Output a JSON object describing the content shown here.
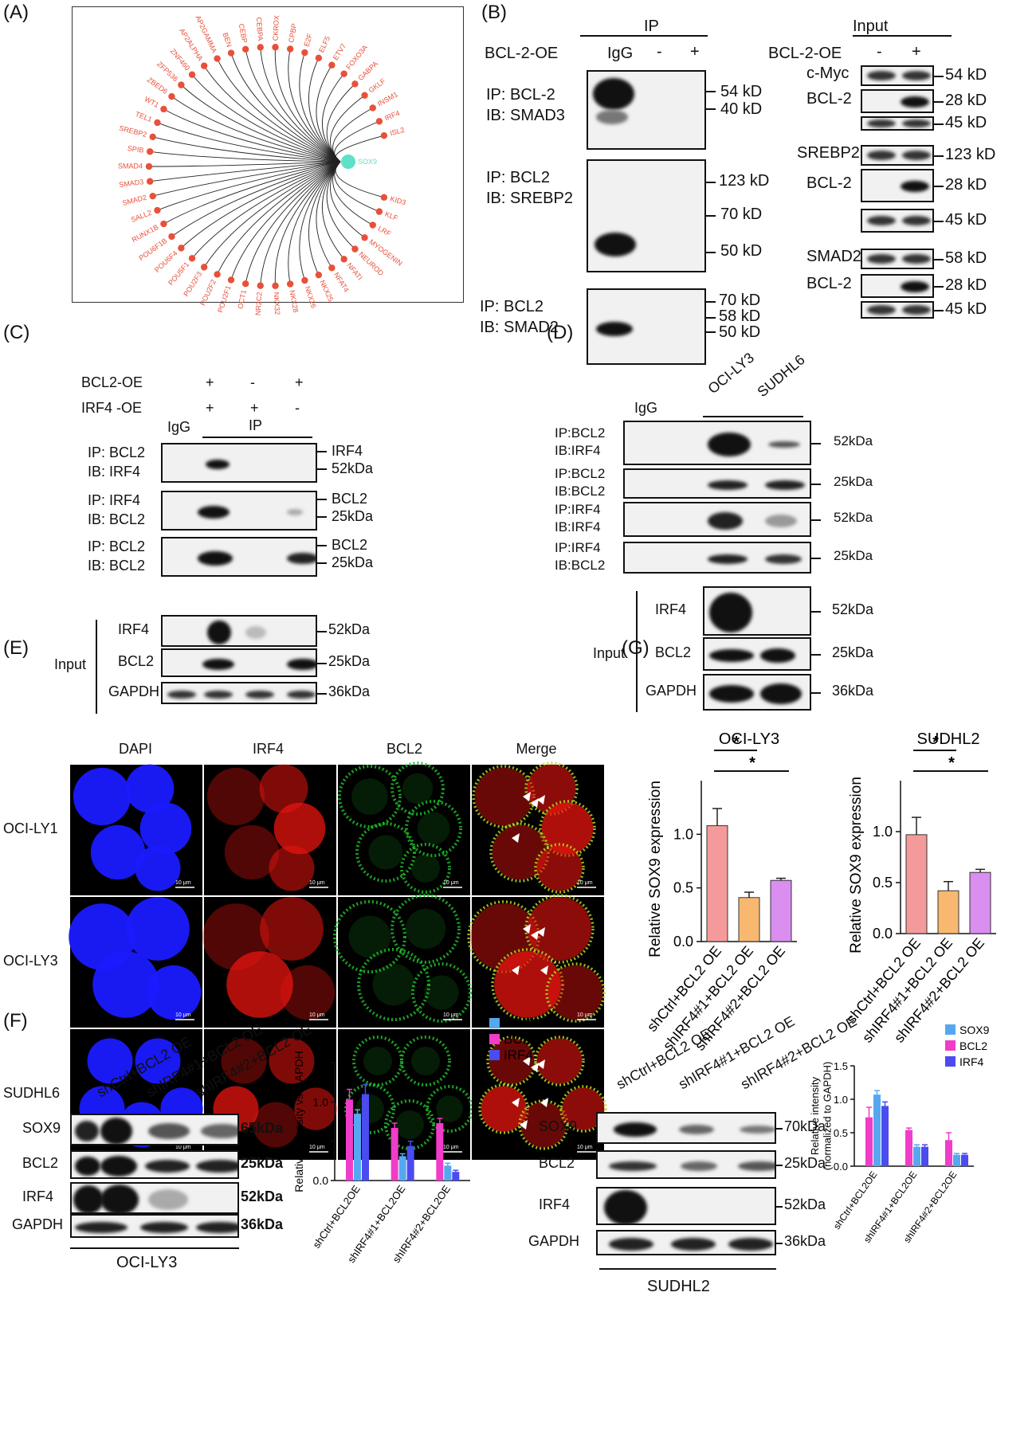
{
  "panel_letters": [
    "(A)",
    "(B)",
    "(C)",
    "(D)",
    "(E)",
    "(F)",
    "(G)"
  ],
  "panelA": {
    "center": "SOX9",
    "colors": {
      "node": "#e8503a",
      "center": "#5fe0c8",
      "line": "#222222"
    },
    "nodes": [
      "ISL2",
      "IRF4",
      "INSM1",
      "GKLF",
      "GABPA",
      "FOXO3A",
      "ETV7",
      "ELF5",
      "E2F",
      "CPBP",
      "CKROX",
      "CEBPA",
      "CEBP",
      "BEN",
      "AP2GAMMA",
      "AP2ALPHA",
      "ZNF460",
      "ZFP536",
      "ZBED6",
      "WT1",
      "TEL1",
      "SREBP2",
      "SPIB",
      "SMAD4",
      "SMAD3",
      "SMAD2",
      "SALL2",
      "RUNX1B",
      "POU6F1B",
      "POU6F4",
      "POU5F1",
      "POU2F3",
      "POU2F2",
      "POU2F1",
      "OCT1",
      "NR2C2",
      "NKX32",
      "NKX28",
      "NKX26",
      "NKX25",
      "NFAT4",
      "NFATI",
      "NEUROD",
      "MYOGENIN",
      "LRF",
      "KLF",
      "KID3"
    ]
  },
  "panelB": {
    "ip_header": "IP",
    "input_header": "Input",
    "row_label": "BCL-2-OE",
    "input_row_label": "BCL-2-OE",
    "lanes": [
      "IgG",
      "-",
      "+"
    ],
    "input_lanes": [
      "-",
      "+"
    ],
    "blot1": {
      "ip": "IP: BCL-2",
      "ib": "IB: SMAD3",
      "markers": [
        "54 kD",
        "40 kD"
      ]
    },
    "blot2": {
      "ip": "IP: BCL2",
      "ib": "IB: SREBP2",
      "markers": [
        "123 kD",
        "70 kD",
        "50 kD"
      ]
    },
    "blot3": {
      "ip": "IP: BCL2",
      "ib": "IB: SMAD2",
      "markers": [
        "70 kD",
        "58 kD",
        "50 kD"
      ]
    },
    "input_blots": [
      {
        "label": "c-Myc",
        "marker": "54 kD"
      },
      {
        "label": "BCL-2",
        "marker": "28 kD"
      },
      {
        "label": "",
        "marker": "45 kD"
      },
      {
        "label": "SREBP2",
        "marker": "123 kD"
      },
      {
        "label": "BCL-2",
        "marker": "28 kD"
      },
      {
        "label": "",
        "marker": "45 kD"
      },
      {
        "label": "SMAD2",
        "marker": "58 kD"
      },
      {
        "label": "BCL-2",
        "marker": "28 kD"
      },
      {
        "label": "",
        "marker": "45 kD"
      }
    ]
  },
  "panelC": {
    "row1": {
      "label": "BCL2-OE",
      "values": [
        "+",
        "-",
        "+"
      ]
    },
    "row2": {
      "label": "IRF4 -OE",
      "values": [
        "+",
        "+",
        "-"
      ]
    },
    "igg": "IgG",
    "ip": "IP",
    "blots": [
      {
        "ip": "IP: BCL2",
        "ib": "IB: IRF4",
        "m1": "IRF4",
        "m2": "52kDa"
      },
      {
        "ip": "IP: IRF4",
        "ib": "IB: BCL2",
        "m1": "BCL2",
        "m2": "25kDa"
      },
      {
        "ip": "IP: BCL2",
        "ib": "IB: BCL2",
        "m1": "BCL2",
        "m2": "25kDa"
      }
    ],
    "input_label": "Input",
    "input_blots": [
      {
        "label": "IRF4",
        "marker": "52kDa"
      },
      {
        "label": "BCL2",
        "marker": "25kDa"
      },
      {
        "label": "GAPDH",
        "marker": "36kDa"
      }
    ]
  },
  "panelD": {
    "igg": "IgG",
    "lanes": [
      "OCI-LY3",
      "SUDHL6"
    ],
    "blots": [
      {
        "ip": "IP:BCL2",
        "ib": "IB:IRF4",
        "marker": "52kDa"
      },
      {
        "ip": "IP:BCL2",
        "ib": "IB:BCL2",
        "marker": "25kDa"
      },
      {
        "ip": "IP:IRF4",
        "ib": "IB:IRF4",
        "marker": "52kDa"
      },
      {
        "ip": "IP:IRF4",
        "ib": "IB:BCL2",
        "marker": "25kDa"
      }
    ],
    "input_label": "Input",
    "input_blots": [
      {
        "label": "IRF4",
        "marker": "52kDa"
      },
      {
        "label": "BCL2",
        "marker": "25kDa"
      },
      {
        "label": "GAPDH",
        "marker": "36kDa"
      }
    ]
  },
  "panelE": {
    "columns": [
      "DAPI",
      "IRF4",
      "BCL2",
      "Merge"
    ],
    "rows": [
      "OCI-LY1",
      "OCI-LY3",
      "SUDHL6"
    ],
    "scale": "10 μm",
    "colors": {
      "dapi": "#1a1aff",
      "irf4": "#e8140f",
      "bcl2": "#1fbf2a"
    }
  },
  "panelF": {
    "left": {
      "lanes": [
        "shCtrl+BCL2 OE",
        "shIRF4#1+BCL2 OE",
        "shIRF4#2+BCL2 OE"
      ],
      "blots": [
        {
          "label": "SOX9",
          "marker": "65kDa"
        },
        {
          "label": "BCL2",
          "marker": "25kDa"
        },
        {
          "label": "IRF4",
          "marker": "52kDa"
        },
        {
          "label": "GAPDH",
          "marker": "36kDa"
        }
      ],
      "cell": "OCI-LY3"
    },
    "right": {
      "lanes": [
        "shCtrl+BCL2 OE",
        "shIRF4#1+BCL2 OE",
        "shIRF4#2+BCL2 OE"
      ],
      "blots": [
        {
          "label": "SOX9",
          "marker": "70kDa"
        },
        {
          "label": "BCL2",
          "marker": "25kDa"
        },
        {
          "label": "IRF4",
          "marker": "52kDa"
        },
        {
          "label": "GAPDH",
          "marker": "36kDa"
        }
      ],
      "cell": "SUDHL2"
    }
  },
  "chart_data": [
    {
      "id": "F-left",
      "type": "bar",
      "categories": [
        "shCtrl+BCL2OE",
        "shIRF4#1+BCL2OE",
        "shIRF4#2+BCL2OE"
      ],
      "series": [
        {
          "name": "SOX9",
          "color": "#55a8f0",
          "values": [
            0.85,
            0.31,
            0.19
          ],
          "errors": [
            0.05,
            0.03,
            0.03
          ]
        },
        {
          "name": "BCL2",
          "color": "#f03cc8",
          "values": [
            1.03,
            0.67,
            0.73
          ],
          "errors": [
            0.13,
            0.06,
            0.06
          ]
        },
        {
          "name": "IRF4",
          "color": "#4b4bf0",
          "values": [
            1.1,
            0.44,
            0.11
          ],
          "errors": [
            0.12,
            0.06,
            0.02
          ]
        }
      ],
      "draw_order": [
        "BCL2",
        "SOX9",
        "IRF4"
      ],
      "ylabel": "Relative intensity vs GAPDH",
      "ylim": [
        0,
        1.5
      ],
      "yticks": [
        "0.0",
        "0.5",
        "1.0",
        "1.5"
      ],
      "legend": "top-right"
    },
    {
      "id": "F-right",
      "type": "bar",
      "categories": [
        "shCtrl+BCL2OE",
        "shIRF4#1+BCL2OE",
        "shIRF4#2+BCL2OE"
      ],
      "series": [
        {
          "name": "SOX9",
          "color": "#55a8f0",
          "values": [
            1.07,
            0.29,
            0.17
          ],
          "errors": [
            0.06,
            0.03,
            0.02
          ]
        },
        {
          "name": "BCL2",
          "color": "#f03cc8",
          "values": [
            0.73,
            0.54,
            0.39
          ],
          "errors": [
            0.15,
            0.03,
            0.11
          ]
        },
        {
          "name": "IRF4",
          "color": "#4b4bf0",
          "values": [
            0.9,
            0.29,
            0.17
          ],
          "errors": [
            0.06,
            0.03,
            0.02
          ]
        }
      ],
      "draw_order": [
        "BCL2",
        "SOX9",
        "IRF4"
      ],
      "ylabel": "Relative intensity (normalized to GAPDH)",
      "ylim": [
        0,
        1.5
      ],
      "yticks": [
        "0.0",
        "0.5",
        "1.0",
        "1.5"
      ],
      "legend": "top-right"
    },
    {
      "id": "G-left",
      "type": "bar",
      "title": "OCI-LY3",
      "categories": [
        "shCtrl+BCL2 OE",
        "shIRF4#1+BCL2 OE",
        "shIRF4#2+BCL2 OE"
      ],
      "values": [
        1.08,
        0.41,
        0.57
      ],
      "errors": [
        0.16,
        0.05,
        0.02
      ],
      "colors": [
        "#f59a9a",
        "#f8b870",
        "#d98ef0"
      ],
      "ylabel": "Relative SOX9 expression",
      "ylim": [
        0,
        1.5
      ],
      "yticks": [
        "0.0",
        "0.5",
        "1.0"
      ],
      "significance": [
        {
          "from": 0,
          "to": 1,
          "label": "*"
        },
        {
          "from": 0,
          "to": 2,
          "label": "*"
        }
      ]
    },
    {
      "id": "G-right",
      "type": "bar",
      "title": "SUDHL2",
      "categories": [
        "shCtrl+BCL2 OE",
        "shIRF4#1+BCL2 OE",
        "shIRF4#2+BCL2 OE"
      ],
      "values": [
        0.97,
        0.42,
        0.6
      ],
      "errors": [
        0.17,
        0.09,
        0.03
      ],
      "colors": [
        "#f59a9a",
        "#f8b870",
        "#d98ef0"
      ],
      "ylabel": "Relative SOX9 expression",
      "ylim": [
        0,
        1.5
      ],
      "yticks": [
        "0.0",
        "0.5",
        "1.0"
      ],
      "significance": [
        {
          "from": 0,
          "to": 1,
          "label": "*"
        },
        {
          "from": 0,
          "to": 2,
          "label": "*"
        }
      ]
    }
  ]
}
